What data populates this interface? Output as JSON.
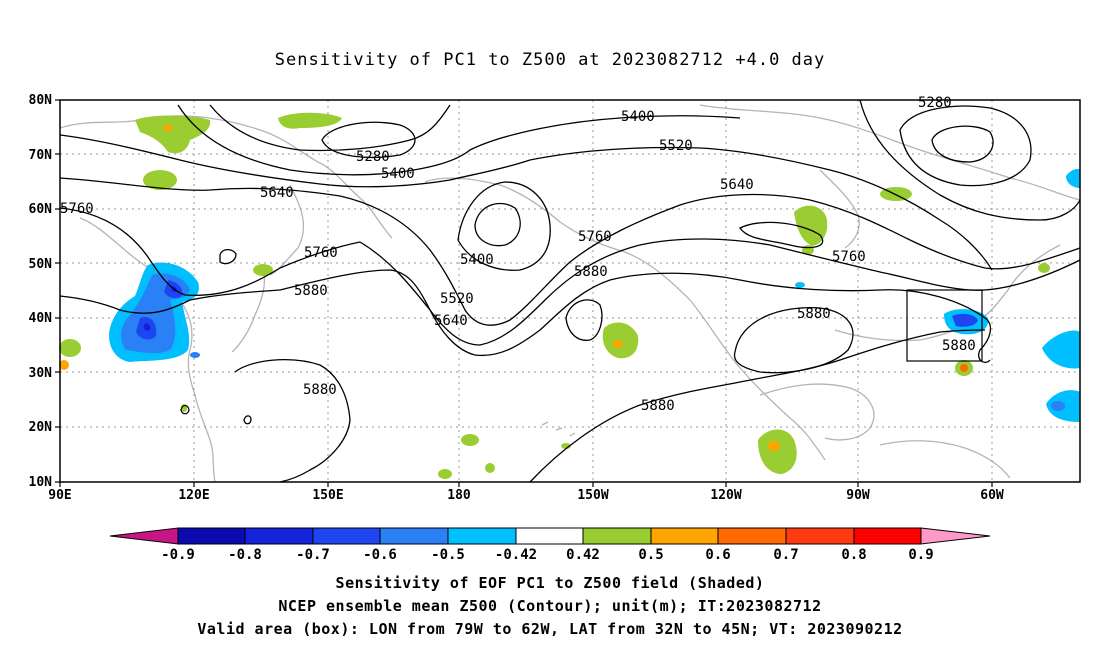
{
  "title": "Sensitivity of PC1 to Z500 at 2023082712 +4.0 day",
  "map": {
    "lat_labels": [
      "80N",
      "70N",
      "60N",
      "50N",
      "40N",
      "30N",
      "20N",
      "10N"
    ],
    "lon_labels": [
      "90E",
      "120E",
      "150E",
      "180",
      "150W",
      "120W",
      "90W",
      "60W"
    ],
    "contour_labels": [
      "5280",
      "5280",
      "5400",
      "5400",
      "5400",
      "5520",
      "5520",
      "5640",
      "5640",
      "5640",
      "5760",
      "5760",
      "5760",
      "5760",
      "5880",
      "5880",
      "5880",
      "5880",
      "5880",
      "5880"
    ],
    "valid_box_label": "5880",
    "colors": {
      "land_outline": "#b4b4b4",
      "contour": "#000000",
      "frame": "#000000",
      "grid": "#9a9a9a"
    }
  },
  "colorbar": {
    "ticks": [
      "-0.9",
      "-0.8",
      "-0.7",
      "-0.6",
      "-0.5",
      "-0.42",
      "0.42",
      "0.5",
      "0.6",
      "0.7",
      "0.8",
      "0.9"
    ],
    "colors": [
      "#c71585",
      "#0a0ab0",
      "#1422d9",
      "#1e46f0",
      "#2a80f5",
      "#00bfff",
      "#ffffff",
      "#9acd32",
      "#ffa500",
      "#ff6a00",
      "#ff3a10",
      "#ff0000",
      "#ff9ac8"
    ]
  },
  "footer": {
    "line1": "Sensitivity of EOF PC1 to Z500 field (Shaded)",
    "line2": "NCEP ensemble mean Z500 (Contour); unit(m); IT:2023082712",
    "line3": "Valid area (box): LON from 79W to 62W, LAT from 32N to 45N; VT: 2023090212"
  }
}
